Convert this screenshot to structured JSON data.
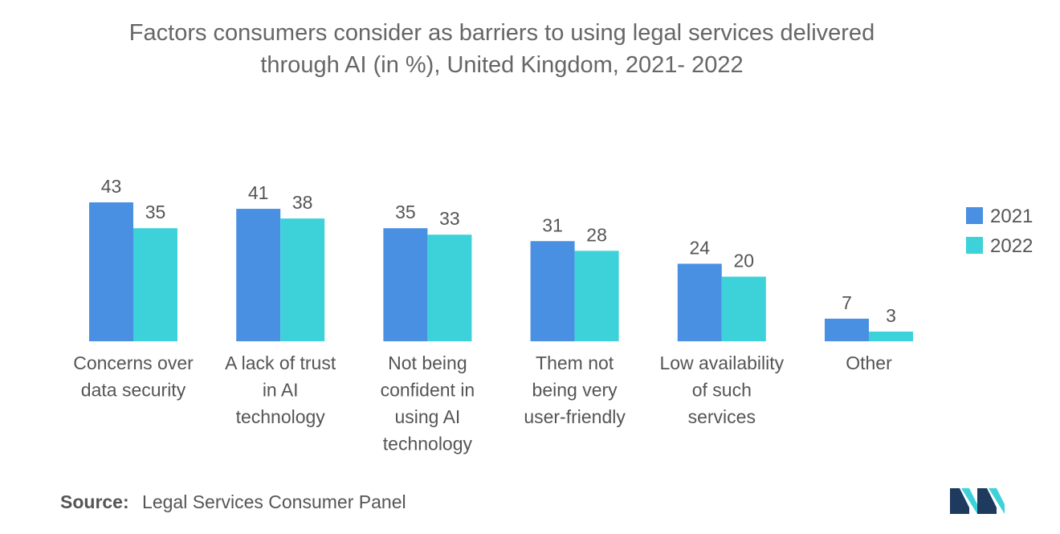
{
  "chart_data": {
    "type": "bar",
    "title_lines": [
      "Factors consumers consider as barriers to using legal services delivered",
      "through AI (in %), United Kingdom, 2021- 2022"
    ],
    "categories": [
      [
        "Concerns over",
        "data security"
      ],
      [
        "A lack of trust",
        "in AI",
        "technology"
      ],
      [
        "Not being",
        "confident in",
        "using AI",
        "technology"
      ],
      [
        "Them not",
        "being very",
        "user-friendly"
      ],
      [
        "Low availability",
        "of such",
        "services"
      ],
      [
        "Other"
      ]
    ],
    "series": [
      {
        "name": "2021",
        "color": "#4a90e2",
        "values": [
          43,
          41,
          35,
          31,
          24,
          7
        ]
      },
      {
        "name": "2022",
        "color": "#3dd1d9",
        "values": [
          35,
          38,
          33,
          28,
          20,
          3
        ]
      }
    ],
    "ylim": [
      0,
      43
    ],
    "grid": false,
    "legend_position": "right",
    "xlabel": "",
    "ylabel": ""
  },
  "source": {
    "label": "Source:",
    "text": "Legal Services Consumer Panel"
  },
  "logo": {
    "icon": "mordor-logo-icon",
    "colors": [
      "#1e3a5f",
      "#3dd1d9"
    ]
  }
}
